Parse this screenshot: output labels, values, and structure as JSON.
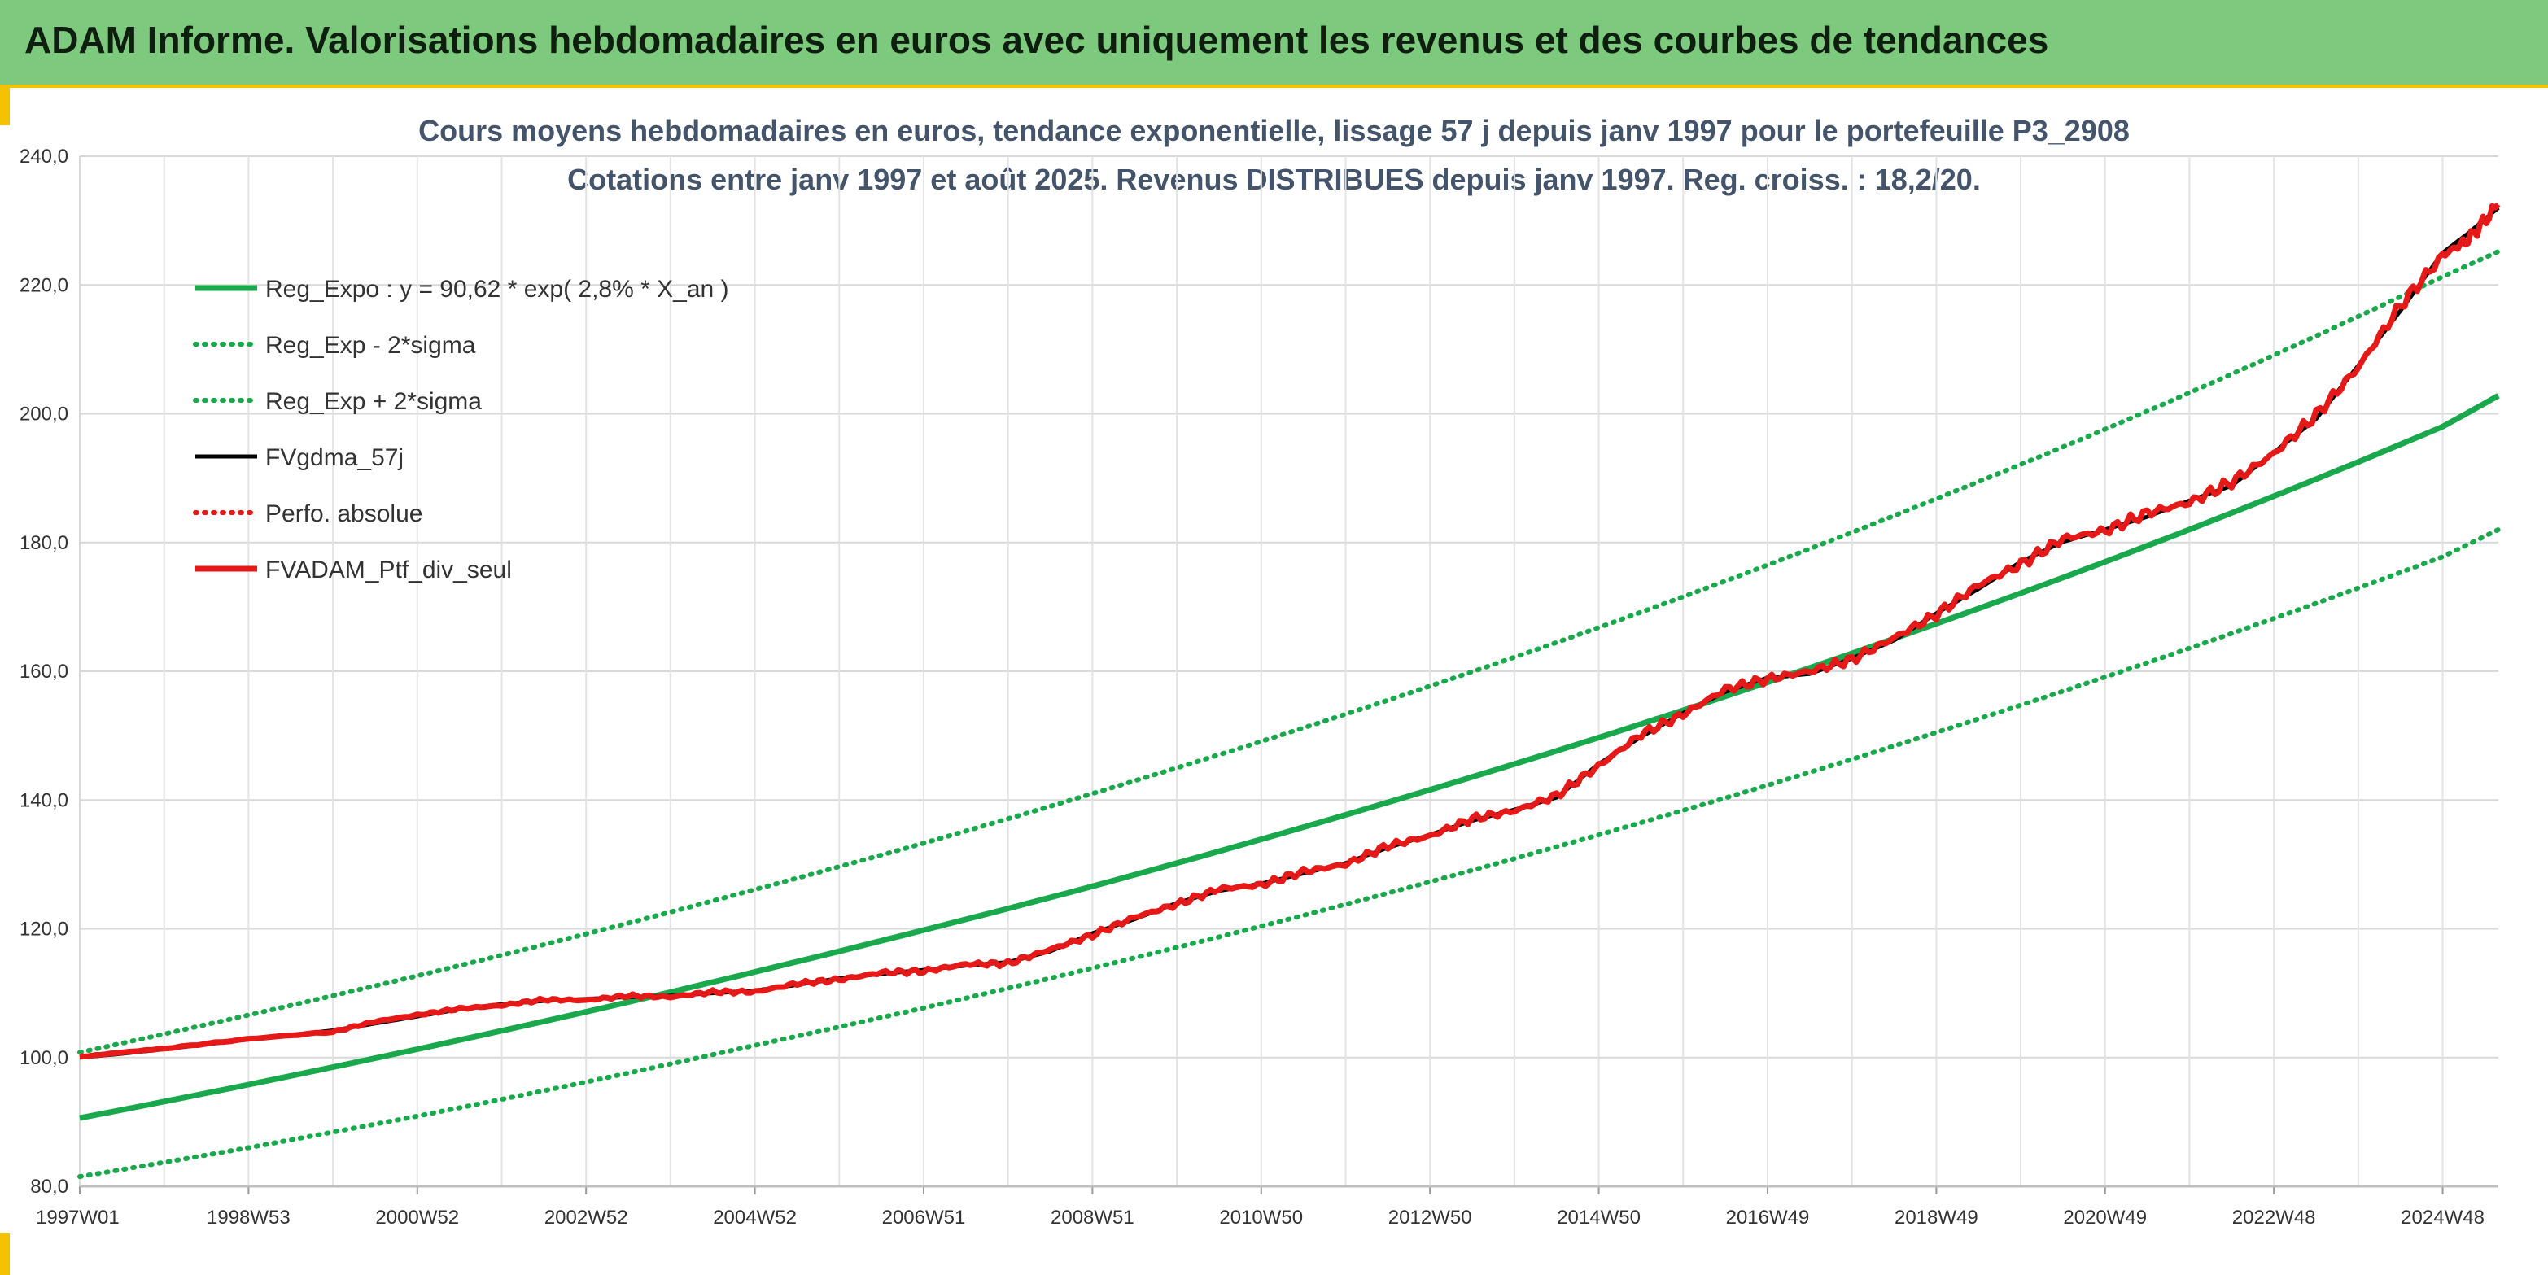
{
  "banner": {
    "title": "ADAM Informe. Valorisations hebdomadaires en euros avec uniquement les revenus et des courbes de tendances"
  },
  "chart_data": {
    "type": "line",
    "title": "Cours moyens hebdomadaires en euros, tendance exponentielle, lissage 57 j depuis janv 1997 pour le portefeuille P3_2908",
    "subtitle": "Cotations entre janv 1997 et août 2025. Revenus DISTRIBUES depuis janv 1997. Reg. croiss. : 18,2/20.",
    "ylim": [
      80,
      240
    ],
    "y_ticks": [
      "80,0",
      "100,0",
      "120,0",
      "140,0",
      "160,0",
      "180,0",
      "200,0",
      "220,0",
      "240,0"
    ],
    "x_range_years": [
      1997.0,
      2025.66
    ],
    "x_ticks": [
      {
        "label": "1997W01",
        "year": 1997.0
      },
      {
        "label": "1998W53",
        "year": 1999.0
      },
      {
        "label": "2000W52",
        "year": 2001.0
      },
      {
        "label": "2002W52",
        "year": 2003.0
      },
      {
        "label": "2004W52",
        "year": 2005.0
      },
      {
        "label": "2006W51",
        "year": 2007.0
      },
      {
        "label": "2008W51",
        "year": 2009.0
      },
      {
        "label": "2010W50",
        "year": 2011.0
      },
      {
        "label": "2012W50",
        "year": 2013.0
      },
      {
        "label": "2014W50",
        "year": 2015.0
      },
      {
        "label": "2016W49",
        "year": 2017.0
      },
      {
        "label": "2018W49",
        "year": 2019.0
      },
      {
        "label": "2020W49",
        "year": 2021.0
      },
      {
        "label": "2022W48",
        "year": 2023.0
      },
      {
        "label": "2024W48",
        "year": 2025.0
      }
    ],
    "grid": true,
    "legend_position": "top-left",
    "series": [
      {
        "name": "Reg_Expo : y = 90,62 * exp( 2,8% *  X_an )",
        "color": "#1aa84c",
        "style": "solid",
        "x": [
          1997.0,
          1999.0,
          2001.0,
          2003.0,
          2005.0,
          2007.0,
          2009.0,
          2011.0,
          2013.0,
          2015.0,
          2017.0,
          2019.0,
          2021.0,
          2023.0,
          2025.0,
          2025.66
        ],
        "values": [
          90.6,
          95.8,
          101.3,
          107.1,
          113.3,
          119.8,
          126.6,
          133.9,
          141.6,
          149.7,
          158.3,
          167.4,
          177.0,
          187.2,
          198.0,
          202.8
        ]
      },
      {
        "name": "Reg_Exp - 2*sigma",
        "color": "#1aa84c",
        "style": "dotted",
        "x": [
          1997.0,
          1999.0,
          2001.0,
          2003.0,
          2005.0,
          2007.0,
          2009.0,
          2011.0,
          2013.0,
          2015.0,
          2017.0,
          2019.0,
          2021.0,
          2023.0,
          2025.0,
          2025.66
        ],
        "values": [
          81.5,
          86.0,
          90.9,
          96.2,
          101.9,
          107.7,
          113.9,
          120.4,
          127.3,
          134.6,
          142.3,
          150.5,
          159.1,
          168.2,
          177.8,
          182.0
        ]
      },
      {
        "name": "Reg_Exp + 2*sigma",
        "color": "#1aa84c",
        "style": "dotted",
        "x": [
          1997.0,
          1999.0,
          2001.0,
          2003.0,
          2005.0,
          2007.0,
          2009.0,
          2011.0,
          2013.0,
          2015.0,
          2017.0,
          2019.0,
          2021.0,
          2023.0,
          2025.0,
          2025.66
        ],
        "values": [
          100.8,
          106.6,
          112.7,
          119.2,
          126.1,
          133.3,
          141.0,
          149.1,
          157.7,
          166.8,
          176.5,
          186.8,
          197.6,
          209.1,
          221.3,
          225.2
        ]
      },
      {
        "name": "FVgdma_57j",
        "color": "#000000",
        "style": "solid",
        "x": [
          1997.0,
          1997.5,
          1998.0,
          1999.0,
          2000.0,
          2000.5,
          2001.0,
          2001.5,
          2002.0,
          2002.5,
          2003.0,
          2003.5,
          2004.0,
          2004.5,
          2005.0,
          2005.5,
          2006.0,
          2006.5,
          2007.0,
          2007.5,
          2008.0,
          2008.5,
          2009.0,
          2009.5,
          2010.0,
          2010.5,
          2011.0,
          2011.5,
          2012.0,
          2012.5,
          2013.0,
          2013.5,
          2014.0,
          2014.5,
          2015.0,
          2015.5,
          2016.0,
          2016.5,
          2017.0,
          2017.5,
          2018.0,
          2018.5,
          2019.0,
          2019.5,
          2020.0,
          2020.5,
          2021.0,
          2021.5,
          2022.0,
          2022.5,
          2023.0,
          2023.5,
          2024.0,
          2024.5,
          2025.0,
          2025.3,
          2025.66
        ],
        "values": [
          100.0,
          100.6,
          101.3,
          102.8,
          104.2,
          105.3,
          106.4,
          107.5,
          108.3,
          108.8,
          109.1,
          109.4,
          109.6,
          110.0,
          110.4,
          111.3,
          112.3,
          113.0,
          113.6,
          114.3,
          114.8,
          116.5,
          119.3,
          121.5,
          124.0,
          125.9,
          127.0,
          128.6,
          130.2,
          132.6,
          134.6,
          136.8,
          138.5,
          140.4,
          145.6,
          149.8,
          153.5,
          156.8,
          159.0,
          159.6,
          162.0,
          164.8,
          169.0,
          172.8,
          177.0,
          180.1,
          182.0,
          184.0,
          186.5,
          188.8,
          194.0,
          199.2,
          207.5,
          216.0,
          225.0,
          228.0,
          232.0
        ]
      },
      {
        "name": "Perfo. absolue",
        "color": "#e61919",
        "style": "dotted",
        "x": [
          1997.0,
          1998.0,
          2000.0,
          2002.0,
          2004.0,
          2006.0,
          2008.0,
          2010.0,
          2012.0,
          2014.0,
          2016.0,
          2018.0,
          2020.0,
          2022.0,
          2024.0,
          2025.0,
          2025.66
        ],
        "values": [
          100.0,
          101.3,
          104.2,
          108.3,
          109.6,
          112.3,
          114.8,
          124.0,
          130.2,
          138.5,
          153.5,
          162.0,
          177.0,
          186.5,
          207.5,
          225.0,
          232.0
        ]
      },
      {
        "name": "FVADAM_Ptf_div_seul",
        "color": "#e61919",
        "style": "solid",
        "x": [
          1997.0,
          1997.5,
          1998.0,
          1999.0,
          2000.0,
          2000.5,
          2001.0,
          2001.5,
          2002.0,
          2002.5,
          2003.0,
          2003.5,
          2004.0,
          2004.5,
          2005.0,
          2005.5,
          2006.0,
          2006.5,
          2007.0,
          2007.5,
          2008.0,
          2008.5,
          2009.0,
          2009.5,
          2010.0,
          2010.5,
          2011.0,
          2011.5,
          2012.0,
          2012.5,
          2013.0,
          2013.5,
          2014.0,
          2014.5,
          2015.0,
          2015.5,
          2016.0,
          2016.5,
          2017.0,
          2017.5,
          2018.0,
          2018.5,
          2019.0,
          2019.5,
          2020.0,
          2020.5,
          2021.0,
          2021.5,
          2022.0,
          2022.5,
          2023.0,
          2023.5,
          2024.0,
          2024.5,
          2025.0,
          2025.3,
          2025.66
        ],
        "values": [
          100.1,
          100.8,
          101.4,
          102.9,
          104.0,
          105.6,
          106.6,
          107.6,
          108.1,
          109.0,
          108.9,
          109.6,
          109.4,
          110.2,
          110.2,
          111.5,
          112.1,
          113.2,
          113.4,
          114.5,
          114.6,
          116.8,
          119.0,
          121.8,
          123.8,
          126.2,
          126.8,
          128.9,
          130.0,
          132.9,
          134.4,
          137.1,
          138.3,
          140.7,
          145.3,
          150.2,
          153.3,
          157.2,
          158.8,
          160.0,
          161.8,
          165.2,
          168.8,
          173.4,
          176.6,
          180.6,
          181.8,
          184.6,
          186.2,
          189.4,
          193.8,
          199.8,
          207.2,
          216.8,
          224.6,
          227.0,
          232.5
        ]
      }
    ]
  }
}
